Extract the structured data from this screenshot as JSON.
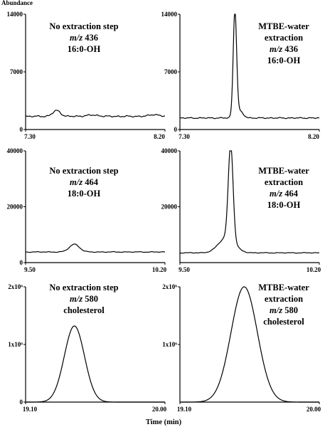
{
  "figure": {
    "y_axis_title": "Abundance",
    "x_axis_title": "Time (min)"
  },
  "chart_data": [
    {
      "type": "line",
      "row": 1,
      "column": 1,
      "annotation": [
        "No extraction step",
        {
          "italic": "m/z",
          "rest": " 436"
        },
        "16:0-OH"
      ],
      "xlim": [
        7.3,
        8.2
      ],
      "ylim": [
        0,
        14000
      ],
      "xticks": [
        "7.30",
        "8.20"
      ],
      "yticks": [
        "0",
        "7000",
        "14000"
      ],
      "baseline": 1600,
      "peaks": [
        {
          "x": 7.5,
          "height": 700,
          "width": 0.025
        },
        {
          "x": 7.73,
          "height": 150,
          "width": 0.04
        },
        {
          "x": 8.13,
          "height": 220,
          "width": 0.03
        }
      ],
      "noise": 100
    },
    {
      "type": "line",
      "row": 1,
      "column": 2,
      "annotation": [
        "MTBE-water",
        "extraction",
        {
          "italic": "m/z",
          "rest": " 436"
        },
        "16:0-OH"
      ],
      "xlim": [
        7.3,
        8.2
      ],
      "ylim": [
        0,
        14000
      ],
      "xticks": [
        "7.30",
        "8.20"
      ],
      "yticks": [
        "0",
        "7000",
        "14000"
      ],
      "baseline": 1400,
      "peaks": [
        {
          "x": 7.655,
          "height": 12600,
          "width": 0.011
        },
        {
          "x": 7.68,
          "height": 900,
          "width": 0.025
        }
      ],
      "noise": 80
    },
    {
      "type": "line",
      "row": 2,
      "column": 1,
      "annotation": [
        "No extraction step",
        {
          "italic": "m/z",
          "rest": " 464"
        },
        "18:0-OH"
      ],
      "xlim": [
        9.5,
        10.2
      ],
      "ylim": [
        0,
        40000
      ],
      "xticks": [
        "9.50",
        "10.20"
      ],
      "yticks": [
        "0",
        "20000",
        "40000"
      ],
      "baseline": 3800,
      "peaks": [
        {
          "x": 9.745,
          "height": 2800,
          "width": 0.025
        }
      ],
      "noise": 150
    },
    {
      "type": "line",
      "row": 2,
      "column": 2,
      "annotation": [
        "MTBE-water",
        "extraction",
        {
          "italic": "m/z",
          "rest": " 464"
        },
        "18:0-OH"
      ],
      "xlim": [
        9.5,
        10.2
      ],
      "ylim": [
        0,
        40000
      ],
      "xticks": [
        "9.50",
        "10.20"
      ],
      "yticks": [
        "20000",
        "40000"
      ],
      "baseline": 3500,
      "peaks": [
        {
          "x": 9.755,
          "height": 34000,
          "width": 0.012
        },
        {
          "x": 9.735,
          "height": 5500,
          "width": 0.04
        }
      ],
      "noise": 150
    },
    {
      "type": "line",
      "row": 3,
      "column": 1,
      "annotation": [
        "No extraction step",
        {
          "italic": "m/z",
          "rest": " 580"
        },
        "cholesterol"
      ],
      "xlim": [
        19.1,
        20.0
      ],
      "ylim": [
        0,
        2000000
      ],
      "xticks": [
        "19.10",
        "20.00"
      ],
      "yticks": [
        "0",
        "1x10⁶",
        "2x10⁶"
      ],
      "ytick_values": [
        0,
        1000000,
        2000000
      ],
      "baseline": 0,
      "peaks": [
        {
          "x": 19.415,
          "height": 1320000,
          "width": 0.065
        }
      ],
      "noise": 0
    },
    {
      "type": "line",
      "row": 3,
      "column": 2,
      "annotation": [
        "MTBE-water",
        "extraction",
        {
          "italic": "m/z",
          "rest": " 580"
        },
        "cholesterol"
      ],
      "xlim": [
        19.1,
        20.0
      ],
      "ylim": [
        0,
        2000000
      ],
      "xticks": [
        "19.10",
        "20.00"
      ],
      "yticks": [
        "1x10⁶",
        "2x10⁶"
      ],
      "ytick_values": [
        1000000,
        2000000
      ],
      "baseline": 0,
      "peaks": [
        {
          "x": 19.515,
          "height": 2000000,
          "width": 0.085
        }
      ],
      "noise": 0
    }
  ]
}
